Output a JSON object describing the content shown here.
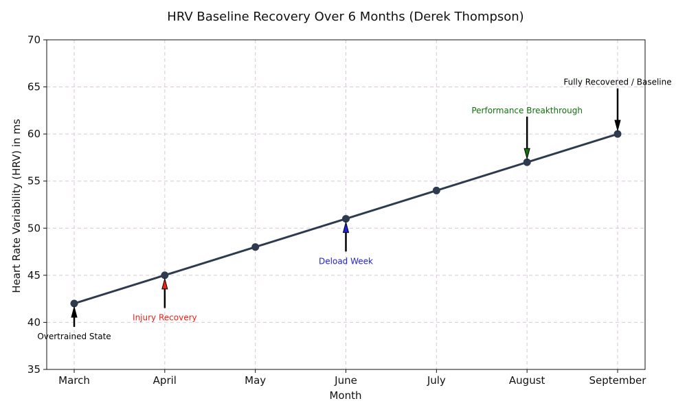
{
  "chart_data": {
    "type": "line",
    "title": "HRV Baseline Recovery Over 6 Months (Derek Thompson)",
    "xlabel": "Month",
    "ylabel": "Heart Rate Variability (HRV) in ms",
    "categories": [
      "March",
      "April",
      "May",
      "June",
      "July",
      "August",
      "September"
    ],
    "series": [
      {
        "name": "HRV",
        "values": [
          42,
          45,
          48,
          51,
          54,
          57,
          60
        ],
        "color": "#2e3b4e"
      }
    ],
    "ylim": [
      35,
      70
    ],
    "yticks": [
      35,
      40,
      45,
      50,
      55,
      60,
      65,
      70
    ],
    "grid": true,
    "annotations": [
      {
        "text": "Overtrained State",
        "category": "March",
        "value": 42,
        "text_value": 38.5,
        "color": "#000000",
        "arrow_color": "#000000"
      },
      {
        "text": "Injury Recovery",
        "category": "April",
        "value": 45,
        "text_value": 40.5,
        "color": "#e8231a",
        "arrow_color": "#e8231a"
      },
      {
        "text": "Deload Week",
        "category": "June",
        "value": 51,
        "text_value": 46.5,
        "color": "#1f22d8",
        "arrow_color": "#1f22d8"
      },
      {
        "text": "Performance Breakthrough",
        "category": "August",
        "value": 57,
        "text_value": 62.5,
        "color": "#12700f",
        "arrow_color": "#12700f"
      },
      {
        "text": "Fully Recovered / Baseline",
        "category": "September",
        "value": 60,
        "text_value": 65.5,
        "color": "#000000",
        "arrow_color": "#000000"
      }
    ]
  }
}
